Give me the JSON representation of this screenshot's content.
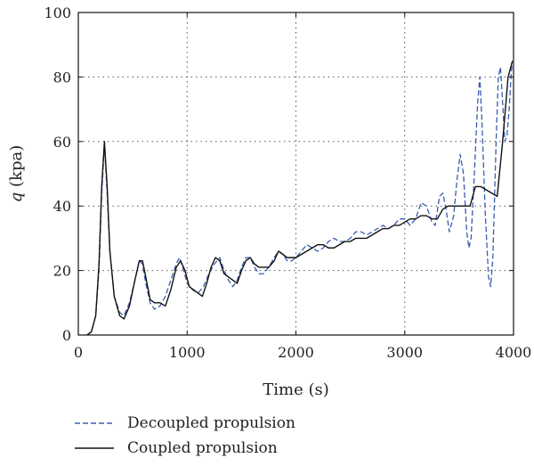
{
  "chart_data": {
    "type": "line",
    "xlabel": "Time (s)",
    "ylabel_symbol": "q",
    "ylabel_unit": " (kpa)",
    "xlim": [
      0,
      4000
    ],
    "ylim": [
      0,
      100
    ],
    "xticks": [
      0,
      1000,
      2000,
      3000,
      4000
    ],
    "yticks": [
      0,
      20,
      40,
      60,
      80,
      100
    ],
    "grid": true,
    "grid_style": "dotted",
    "legend": "bottom-left below plot",
    "series": [
      {
        "name": "Decoupled propulsion",
        "style": "dashed",
        "color": "#3a5bb0",
        "points": [
          [
            80,
            0
          ],
          [
            120,
            1
          ],
          [
            160,
            6
          ],
          [
            190,
            20
          ],
          [
            215,
            44
          ],
          [
            240,
            59
          ],
          [
            265,
            44
          ],
          [
            290,
            26
          ],
          [
            330,
            12
          ],
          [
            380,
            7
          ],
          [
            420,
            6
          ],
          [
            470,
            10
          ],
          [
            520,
            17
          ],
          [
            560,
            23
          ],
          [
            590,
            22
          ],
          [
            620,
            16
          ],
          [
            660,
            10
          ],
          [
            700,
            8
          ],
          [
            750,
            9
          ],
          [
            800,
            12
          ],
          [
            850,
            17
          ],
          [
            900,
            22
          ],
          [
            930,
            24
          ],
          [
            960,
            21
          ],
          [
            1000,
            16
          ],
          [
            1050,
            14
          ],
          [
            1100,
            13
          ],
          [
            1150,
            15
          ],
          [
            1200,
            19
          ],
          [
            1250,
            22
          ],
          [
            1300,
            24
          ],
          [
            1340,
            20
          ],
          [
            1380,
            17
          ],
          [
            1420,
            15
          ],
          [
            1460,
            17
          ],
          [
            1500,
            21
          ],
          [
            1540,
            24
          ],
          [
            1580,
            24
          ],
          [
            1620,
            21
          ],
          [
            1660,
            19
          ],
          [
            1700,
            19
          ],
          [
            1750,
            21
          ],
          [
            1800,
            24
          ],
          [
            1840,
            26
          ],
          [
            1880,
            25
          ],
          [
            1920,
            23
          ],
          [
            1960,
            23
          ],
          [
            2000,
            24
          ],
          [
            2050,
            26
          ],
          [
            2100,
            28
          ],
          [
            2150,
            27
          ],
          [
            2200,
            26
          ],
          [
            2250,
            27
          ],
          [
            2300,
            29
          ],
          [
            2350,
            30
          ],
          [
            2400,
            29
          ],
          [
            2450,
            29
          ],
          [
            2500,
            30
          ],
          [
            2550,
            32
          ],
          [
            2600,
            32
          ],
          [
            2650,
            31
          ],
          [
            2700,
            32
          ],
          [
            2750,
            33
          ],
          [
            2800,
            34
          ],
          [
            2850,
            33
          ],
          [
            2900,
            34
          ],
          [
            2950,
            36
          ],
          [
            3000,
            36
          ],
          [
            3050,
            34
          ],
          [
            3100,
            36
          ],
          [
            3150,
            41
          ],
          [
            3200,
            40
          ],
          [
            3250,
            35
          ],
          [
            3280,
            34
          ],
          [
            3320,
            43
          ],
          [
            3350,
            44
          ],
          [
            3380,
            39
          ],
          [
            3410,
            32
          ],
          [
            3450,
            37
          ],
          [
            3480,
            48
          ],
          [
            3510,
            56
          ],
          [
            3540,
            50
          ],
          [
            3570,
            32
          ],
          [
            3590,
            27
          ],
          [
            3610,
            30
          ],
          [
            3640,
            50
          ],
          [
            3670,
            72
          ],
          [
            3690,
            80
          ],
          [
            3710,
            66
          ],
          [
            3740,
            38
          ],
          [
            3770,
            18
          ],
          [
            3790,
            15
          ],
          [
            3810,
            24
          ],
          [
            3840,
            60
          ],
          [
            3860,
            80
          ],
          [
            3880,
            83
          ],
          [
            3900,
            72
          ],
          [
            3920,
            60
          ],
          [
            3940,
            62
          ],
          [
            3960,
            70
          ],
          [
            3980,
            82
          ],
          [
            3990,
            84
          ]
        ]
      },
      {
        "name": "Coupled propulsion",
        "style": "solid",
        "color": "#111111",
        "points": [
          [
            80,
            0
          ],
          [
            120,
            1
          ],
          [
            160,
            6
          ],
          [
            190,
            22
          ],
          [
            215,
            46
          ],
          [
            240,
            60
          ],
          [
            265,
            46
          ],
          [
            290,
            26
          ],
          [
            330,
            12
          ],
          [
            380,
            6
          ],
          [
            420,
            5
          ],
          [
            470,
            9
          ],
          [
            520,
            17
          ],
          [
            560,
            23
          ],
          [
            590,
            23
          ],
          [
            620,
            18
          ],
          [
            660,
            11
          ],
          [
            700,
            10
          ],
          [
            750,
            10
          ],
          [
            800,
            9
          ],
          [
            850,
            14
          ],
          [
            900,
            21
          ],
          [
            940,
            23
          ],
          [
            980,
            20
          ],
          [
            1020,
            15
          ],
          [
            1060,
            14
          ],
          [
            1100,
            13
          ],
          [
            1140,
            12
          ],
          [
            1180,
            16
          ],
          [
            1220,
            21
          ],
          [
            1260,
            24
          ],
          [
            1300,
            23
          ],
          [
            1340,
            19
          ],
          [
            1380,
            18
          ],
          [
            1420,
            17
          ],
          [
            1460,
            16
          ],
          [
            1500,
            20
          ],
          [
            1540,
            23
          ],
          [
            1580,
            24
          ],
          [
            1620,
            22
          ],
          [
            1660,
            21
          ],
          [
            1700,
            21
          ],
          [
            1750,
            21
          ],
          [
            1800,
            23
          ],
          [
            1840,
            26
          ],
          [
            1880,
            25
          ],
          [
            1920,
            24
          ],
          [
            1960,
            24
          ],
          [
            2000,
            24
          ],
          [
            2050,
            25
          ],
          [
            2100,
            26
          ],
          [
            2150,
            27
          ],
          [
            2200,
            28
          ],
          [
            2250,
            28
          ],
          [
            2300,
            27
          ],
          [
            2350,
            27
          ],
          [
            2400,
            28
          ],
          [
            2450,
            29
          ],
          [
            2500,
            29
          ],
          [
            2550,
            30
          ],
          [
            2600,
            30
          ],
          [
            2650,
            30
          ],
          [
            2700,
            31
          ],
          [
            2750,
            32
          ],
          [
            2800,
            33
          ],
          [
            2850,
            33
          ],
          [
            2900,
            34
          ],
          [
            2950,
            34
          ],
          [
            3000,
            35
          ],
          [
            3050,
            36
          ],
          [
            3100,
            36
          ],
          [
            3150,
            37
          ],
          [
            3200,
            37
          ],
          [
            3250,
            36
          ],
          [
            3300,
            36
          ],
          [
            3350,
            39
          ],
          [
            3400,
            40
          ],
          [
            3450,
            40
          ],
          [
            3500,
            40
          ],
          [
            3550,
            40
          ],
          [
            3600,
            40
          ],
          [
            3650,
            46
          ],
          [
            3700,
            46
          ],
          [
            3750,
            45
          ],
          [
            3800,
            44
          ],
          [
            3850,
            43
          ],
          [
            3900,
            60
          ],
          [
            3950,
            80
          ],
          [
            3990,
            85
          ]
        ]
      }
    ]
  }
}
